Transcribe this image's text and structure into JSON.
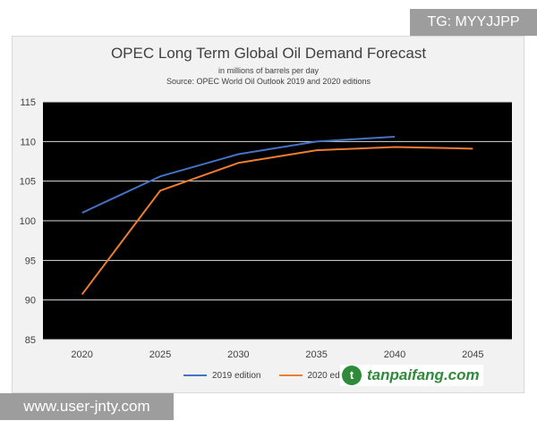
{
  "chart_data": {
    "type": "line",
    "title": "OPEC Long Term Global Oil Demand Forecast",
    "subtitle": "in millions of barrels per day",
    "source": "Source: OPEC World Oil Outlook 2019 and 2020 editions",
    "xlabel": "",
    "ylabel": "",
    "x_ticks": [
      2020,
      2025,
      2030,
      2035,
      2040,
      2045
    ],
    "y_ticks": [
      85,
      90,
      95,
      100,
      105,
      110,
      115
    ],
    "xlim": [
      2020,
      2045
    ],
    "ylim": [
      85,
      115
    ],
    "grid": true,
    "legend_position": "bottom",
    "series": [
      {
        "name": "2019 edition",
        "color": "#4472c4",
        "x": [
          2020,
          2025,
          2030,
          2035,
          2040
        ],
        "values": [
          101.0,
          105.6,
          108.4,
          110.0,
          110.6
        ]
      },
      {
        "name": "2020 edition",
        "color": "#ed7d31",
        "x": [
          2020,
          2025,
          2030,
          2035,
          2040,
          2045
        ],
        "values": [
          90.7,
          103.8,
          107.3,
          108.9,
          109.3,
          109.1
        ]
      }
    ]
  },
  "watermarks": {
    "top": "TG: MYYJJPP",
    "bottom": "www.user-jnty.com",
    "brand": "tanpaifang.com",
    "brand_icon": "leaf-logo-icon"
  },
  "colors": {
    "plot_background": "#000000",
    "grid": "#d9d9d9",
    "frame_background": "#f2f2f2",
    "brand": "#2e8b3a"
  }
}
